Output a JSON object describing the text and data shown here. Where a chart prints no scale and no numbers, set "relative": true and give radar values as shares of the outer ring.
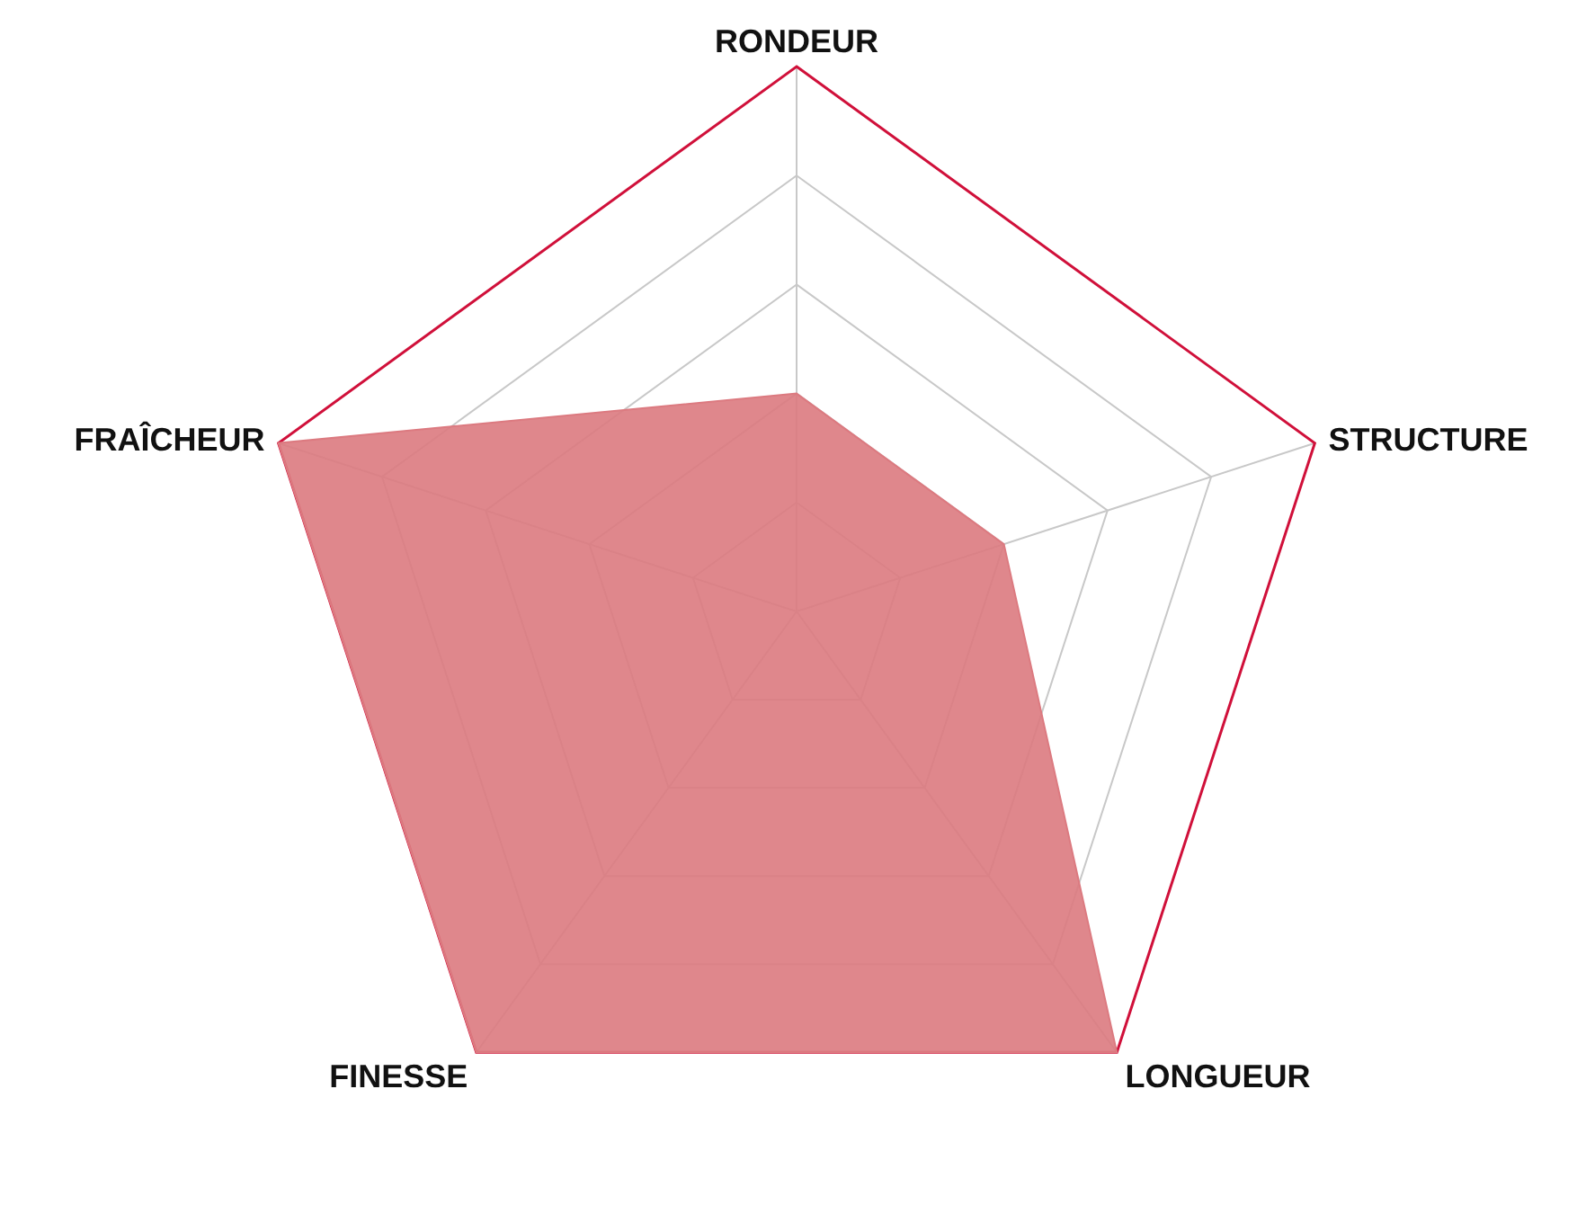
{
  "chart_data": {
    "type": "radar",
    "relative": true,
    "grid": true,
    "categories": [
      "RONDEUR",
      "STRUCTURE",
      "LONGUEUR",
      "FINESSE",
      "FRAÎCHEUR"
    ],
    "series": [
      {
        "color": "#dc7a80",
        "values": [
          0.4,
          0.4,
          1,
          1,
          1
        ]
      }
    ]
  }
}
